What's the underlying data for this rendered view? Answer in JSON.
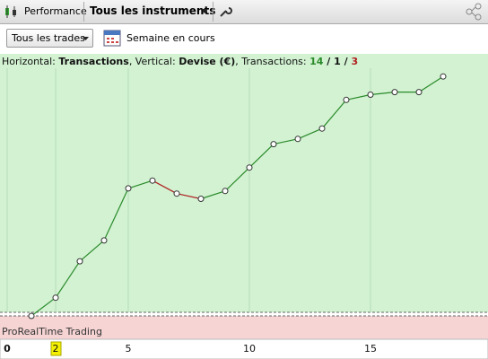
{
  "toolbar": {
    "tab": "Performance",
    "instruments": "Tous les instruments"
  },
  "filters": {
    "trades": "Tous les trades",
    "period": "Semaine en cours"
  },
  "chart_data": {
    "type": "line",
    "header": [
      "Horizontal: ",
      "Transactions",
      ", Vertical: ",
      "Devise (€)",
      ", Transactions: "
    ],
    "counts": {
      "wins": 14,
      "neutral": 1,
      "losses": 3,
      "separator": " / "
    },
    "footer_label": "ProRealTime Trading",
    "x": [
      1,
      2,
      3,
      4,
      5,
      6,
      7,
      8,
      9,
      10,
      11,
      12,
      13,
      14,
      15,
      16,
      17,
      18
    ],
    "values": [
      0,
      7,
      21,
      29,
      49,
      52,
      47,
      45,
      48,
      57,
      66,
      68,
      72,
      83,
      85,
      86,
      86,
      92
    ],
    "xlim": [
      0,
      20
    ],
    "ylim": [
      0,
      100
    ],
    "xticks": [
      0,
      2,
      5,
      10,
      15
    ],
    "up_color": "#2a8a2a",
    "down_color": "#b02020",
    "background": "#d2f2d2",
    "grid": true
  }
}
